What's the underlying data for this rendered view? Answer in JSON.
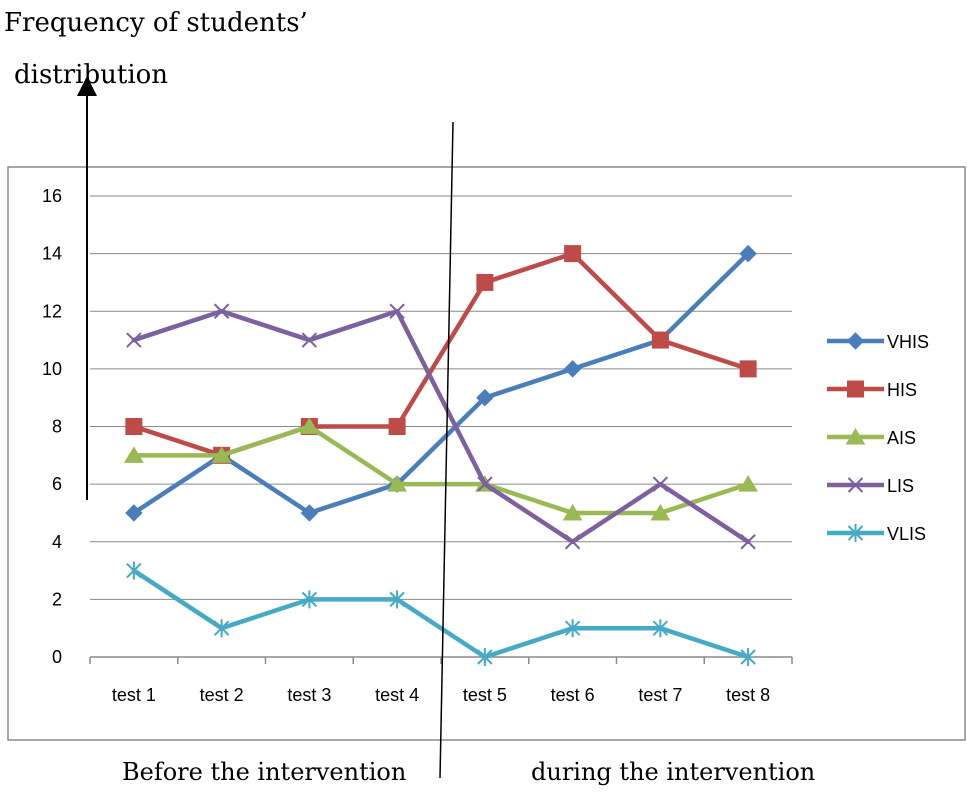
{
  "annotations": {
    "ylabel_line1": "Frequency of students’",
    "ylabel_line2": "distribution",
    "before_label": "Before the intervention",
    "during_label": "during the intervention"
  },
  "chart_data": {
    "type": "line",
    "title": "",
    "xlabel": "",
    "ylabel": "Frequency of students’ distribution",
    "categories": [
      "test 1",
      "test 2",
      "test 3",
      "test 4",
      "test 5",
      "test 6",
      "test 7",
      "test 8"
    ],
    "ylim": [
      0,
      16
    ],
    "yticks": [
      0,
      2,
      4,
      6,
      8,
      10,
      12,
      14,
      16
    ],
    "grid": true,
    "legend_position": "right",
    "series": [
      {
        "name": "VHIS",
        "color": "#4a7ebb",
        "marker": "diamond",
        "values": [
          5,
          7,
          5,
          6,
          9,
          10,
          11,
          14
        ]
      },
      {
        "name": "HIS",
        "color": "#be4b48",
        "marker": "square",
        "values": [
          8,
          7,
          8,
          8,
          13,
          14,
          11,
          10
        ]
      },
      {
        "name": "AIS",
        "color": "#98b954",
        "marker": "triangle",
        "values": [
          7,
          7,
          8,
          6,
          6,
          5,
          5,
          6
        ]
      },
      {
        "name": "LIS",
        "color": "#7d60a0",
        "marker": "x",
        "values": [
          11,
          12,
          11,
          12,
          6,
          4,
          6,
          4
        ]
      },
      {
        "name": "VLIS",
        "color": "#46aac4",
        "marker": "star",
        "values": [
          3,
          1,
          2,
          2,
          0,
          1,
          1,
          0
        ]
      }
    ]
  }
}
